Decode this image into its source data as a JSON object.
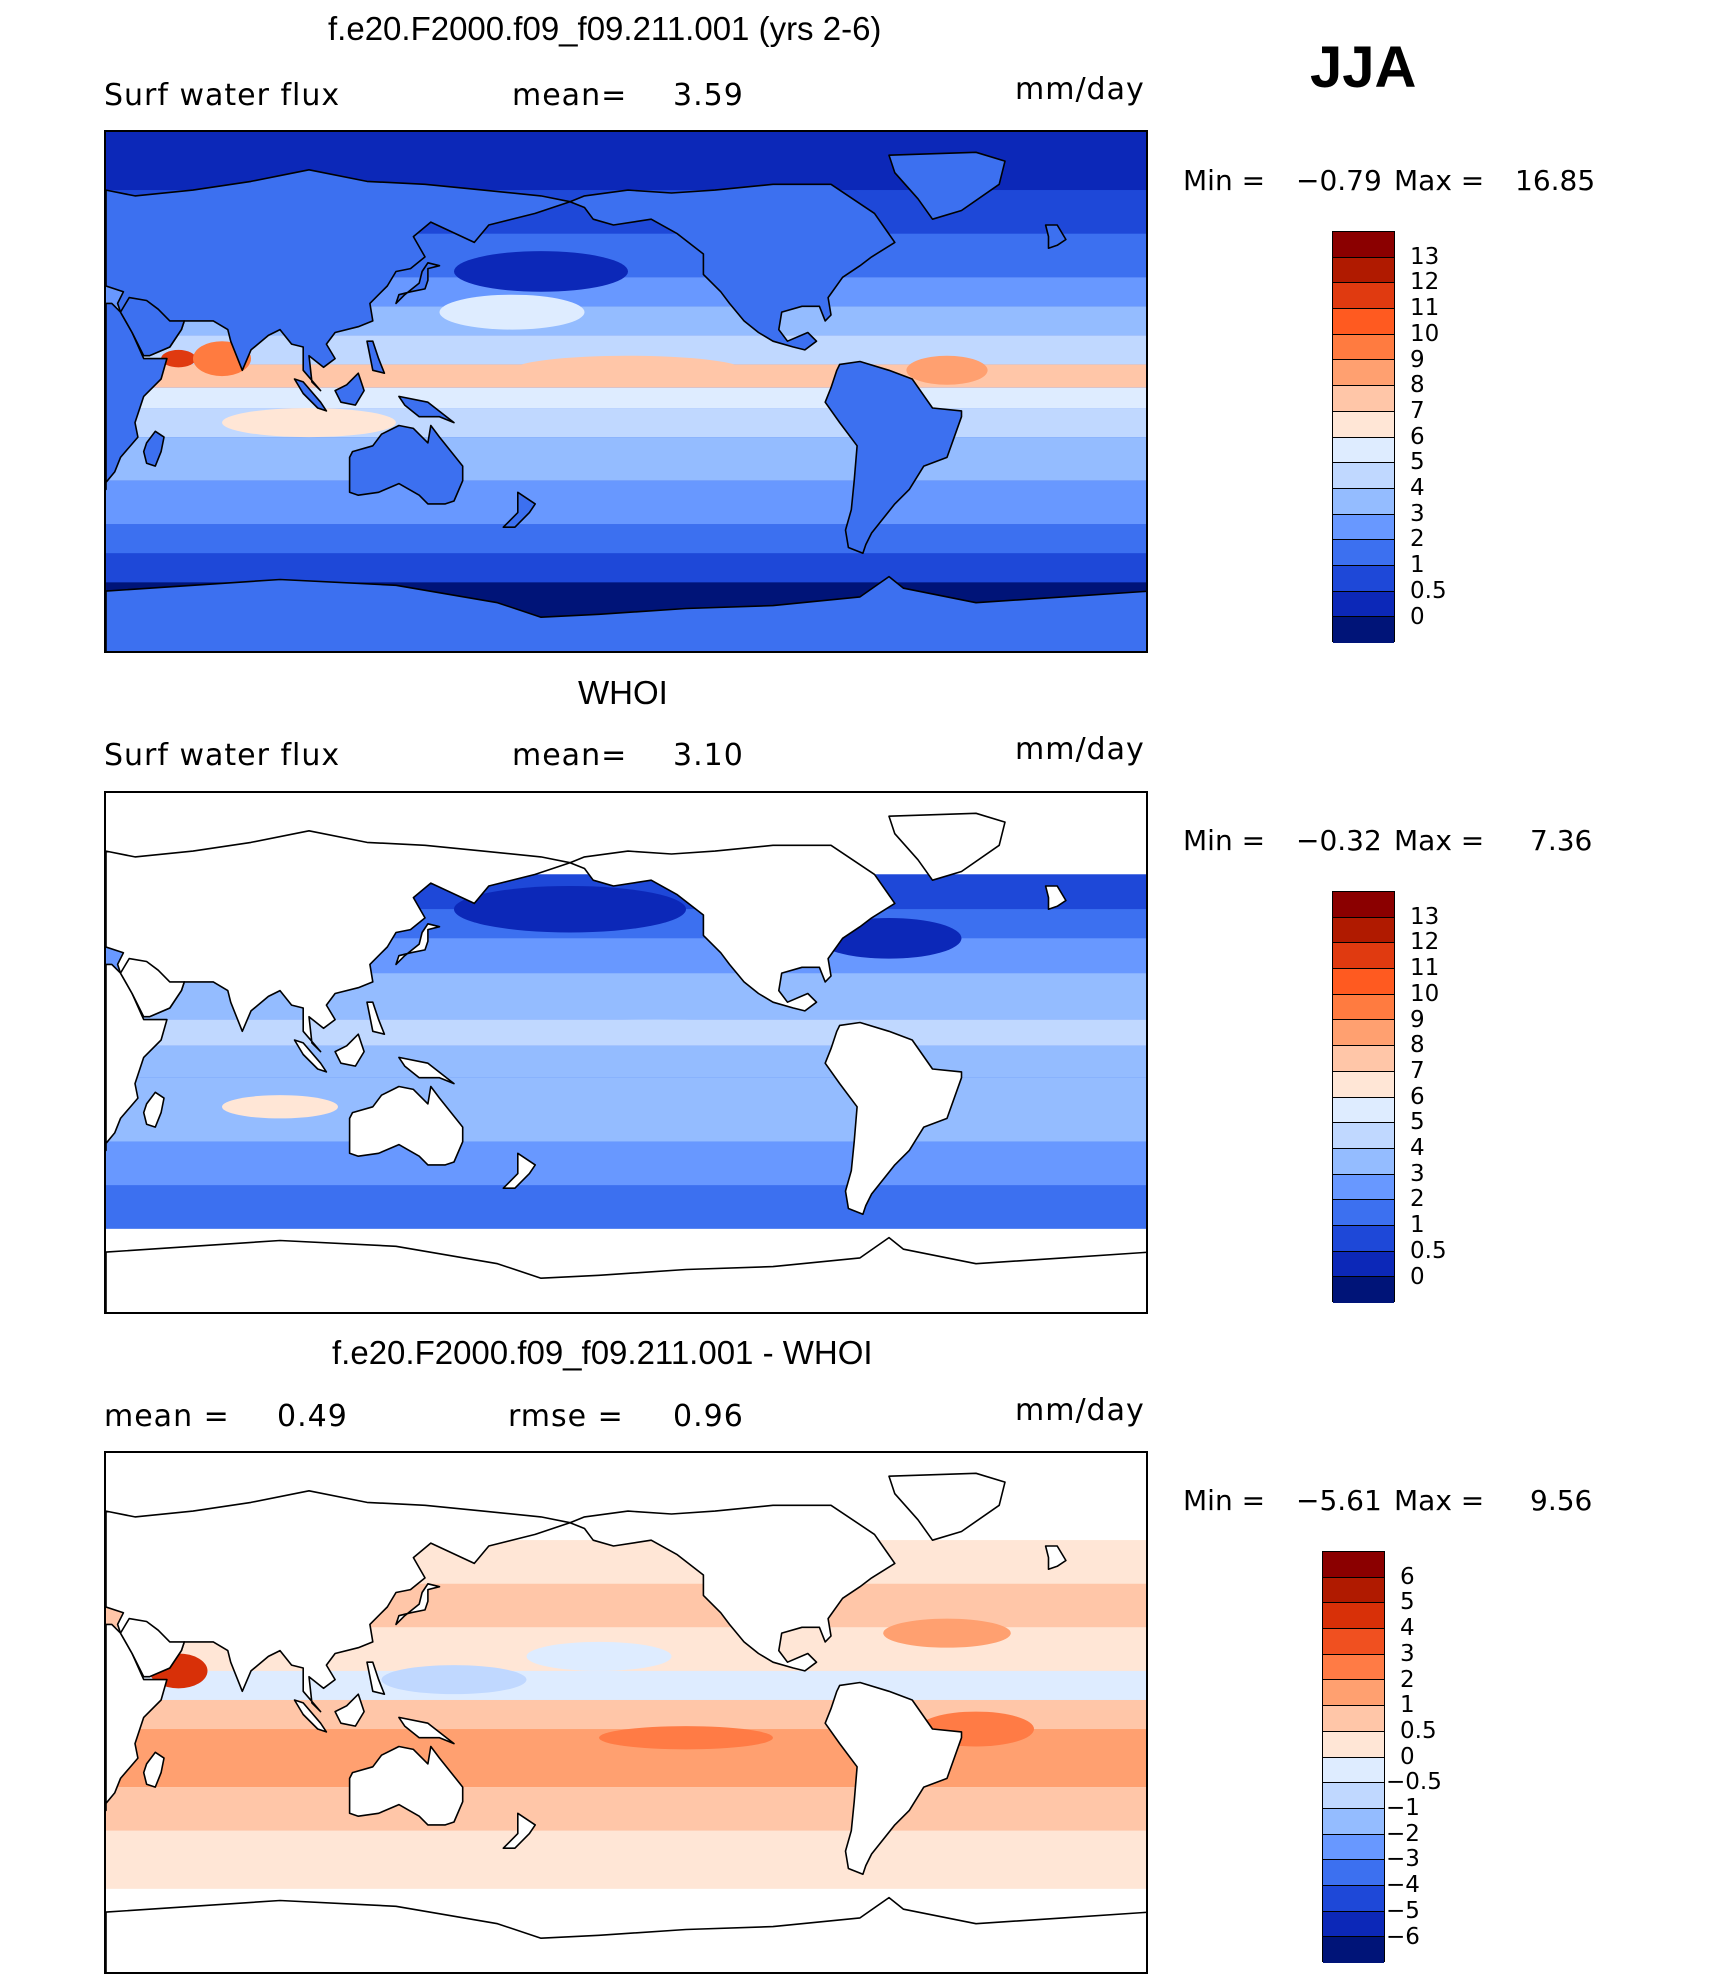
{
  "season": "JJA",
  "colors": {
    "land": "#ffffff",
    "coast": "#000000"
  },
  "panels": [
    {
      "title": "f.e20.F2000.f09_f09.211.001 (yrs 2-6)",
      "left_label": "Surf water flux",
      "mean_label": "mean=",
      "mean_value": "3.59",
      "units": "mm/day",
      "min_label": "Min =",
      "min_value": "−0.79",
      "max_label": "Max =",
      "max_value": "16.85",
      "field": "model",
      "colorbar": {
        "labels": [
          "13",
          "12",
          "11",
          "10",
          "9",
          "8",
          "7",
          "6",
          "5",
          "4",
          "3",
          "2",
          "1",
          "0.5",
          "0"
        ],
        "colors": [
          "#8b0000",
          "#b01a00",
          "#e03a10",
          "#ff5a20",
          "#ff7b40",
          "#ffa070",
          "#ffc6a8",
          "#ffe6d6",
          "#deecff",
          "#c0d8ff",
          "#94bcff",
          "#6898ff",
          "#3c70f0",
          "#1e48d8",
          "#0c28b8",
          "#001478"
        ]
      },
      "annotations": [
        {
          "name": "arabian-sea-hotspot",
          "value": "9"
        },
        {
          "name": "western-pacific-warm-pool",
          "value": "7"
        }
      ]
    },
    {
      "title": "WHOI",
      "left_label": "Surf water flux",
      "mean_label": "mean=",
      "mean_value": "3.10",
      "units": "mm/day",
      "min_label": "Min =",
      "min_value": "−0.32",
      "max_label": "Max =",
      "max_value": "7.36",
      "field": "obs",
      "colorbar": {
        "labels": [
          "13",
          "12",
          "11",
          "10",
          "9",
          "8",
          "7",
          "6",
          "5",
          "4",
          "3",
          "2",
          "1",
          "0.5",
          "0"
        ],
        "colors": [
          "#8b0000",
          "#b01a00",
          "#e03a10",
          "#ff5a20",
          "#ff7b40",
          "#ffa070",
          "#ffc6a8",
          "#ffe6d6",
          "#deecff",
          "#c0d8ff",
          "#94bcff",
          "#6898ff",
          "#3c70f0",
          "#1e48d8",
          "#0c28b8",
          "#001478"
        ]
      }
    },
    {
      "title": "f.e20.F2000.f09_f09.211.001 - WHOI",
      "left_label": "mean =",
      "left_value": "0.49",
      "mid_label": "rmse =",
      "mid_value": "0.96",
      "units": "mm/day",
      "min_label": "Min =",
      "min_value": "−5.61",
      "max_label": "Max =",
      "max_value": "9.56",
      "field": "diff",
      "colorbar": {
        "labels": [
          "6",
          "5",
          "4",
          "3",
          "2",
          "1",
          "0.5",
          "0",
          "−0.5",
          "−1",
          "−2",
          "−3",
          "−4",
          "−5",
          "−6"
        ],
        "colors": [
          "#8b0000",
          "#b01a00",
          "#d83008",
          "#f05020",
          "#ff7b45",
          "#ffa070",
          "#ffc6a8",
          "#ffe6d6",
          "#deecff",
          "#c0d8ff",
          "#94bcff",
          "#6898ff",
          "#3c70f0",
          "#1e48d8",
          "#0c28b8",
          "#001478"
        ]
      }
    }
  ]
}
